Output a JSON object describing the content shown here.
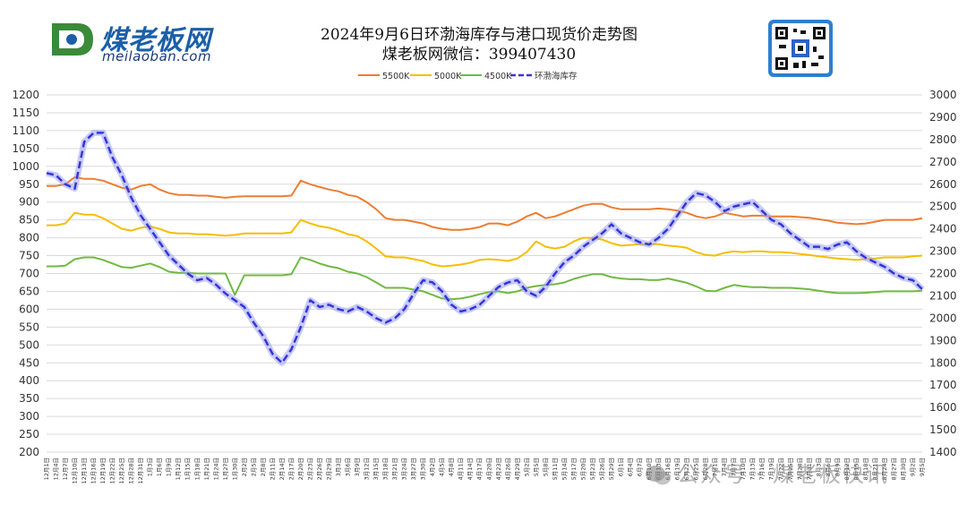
{
  "logo": {
    "name_zh": "煤老板网",
    "domain": "meilaoban.com"
  },
  "title": "2024年9月6日环渤海库存与港口现货价走势图",
  "subtitle": "煤老板网微信：399407430",
  "watermark": "公众号 · 煤老板快讯",
  "qr_icon": "qr-code-icon",
  "colors": {
    "s5500": "#ED7D31",
    "s5000": "#F5BE00",
    "s4500": "#70B944",
    "inventory": "#3535D9",
    "inventory_glow": "#9AA0F0",
    "grid": "#D9D9D9"
  },
  "chart_data": {
    "type": "line",
    "left_axis": {
      "range": [
        200,
        1200
      ],
      "step": 50
    },
    "right_axis": {
      "range": [
        1400,
        3000
      ],
      "step": 100
    },
    "x_tick_labels": [
      "12月1日",
      "12月4日",
      "12月7日",
      "12月10日",
      "12月13日",
      "12月16日",
      "12月19日",
      "12月22日",
      "12月25日",
      "12月28日",
      "12月31日",
      "1月3日",
      "1月6日",
      "1月9日",
      "1月12日",
      "1月15日",
      "1月18日",
      "1月21日",
      "1月24日",
      "1月27日",
      "1月30日",
      "2月2日",
      "2月5日",
      "2月8日",
      "2月11日",
      "2月14日",
      "2月17日",
      "2月20日",
      "2月23日",
      "2月26日",
      "2月29日",
      "3月3日",
      "3月6日",
      "3月9日",
      "3月12日",
      "3月15日",
      "3月18日",
      "3月21日",
      "3月24日",
      "3月27日",
      "3月30日",
      "4月2日",
      "4月5日",
      "4月8日",
      "4月11日",
      "4月14日",
      "4月17日",
      "4月20日",
      "4月23日",
      "4月26日",
      "4月29日",
      "5月2日",
      "5月5日",
      "5月8日",
      "5月11日",
      "5月14日",
      "5月17日",
      "5月20日",
      "5月23日",
      "5月26日",
      "5月29日",
      "6月1日",
      "6月4日",
      "6月7日",
      "6月10日",
      "6月13日",
      "6月16日",
      "6月19日",
      "6月22日",
      "6月25日",
      "6月28日",
      "7月1日",
      "7月4日",
      "7月7日",
      "7月10日",
      "7月13日",
      "7月16日",
      "7月19日",
      "7月22日",
      "7月25日",
      "7月28日",
      "7月31日",
      "8月3日",
      "8月6日",
      "8月9日",
      "8月12日",
      "8月15日",
      "8月18日",
      "8月21日",
      "8月24日",
      "8月27日",
      "8月30日",
      "9月2日",
      "9月5日"
    ],
    "legend_position": "top",
    "grid": "horizontal",
    "series": [
      {
        "name": "5500K",
        "axis": "left",
        "style": "solid",
        "color_key": "s5500",
        "values": [
          945,
          945,
          950,
          970,
          965,
          965,
          960,
          950,
          940,
          935,
          945,
          950,
          935,
          925,
          920,
          920,
          918,
          918,
          915,
          912,
          915,
          916,
          916,
          916,
          916,
          916,
          918,
          960,
          950,
          942,
          935,
          930,
          920,
          915,
          900,
          880,
          855,
          850,
          850,
          845,
          840,
          830,
          825,
          822,
          822,
          825,
          830,
          840,
          840,
          835,
          845,
          860,
          870,
          855,
          860,
          870,
          880,
          890,
          895,
          895,
          885,
          880,
          880,
          880,
          880,
          882,
          880,
          876,
          870,
          860,
          855,
          860,
          870,
          865,
          860,
          862,
          862,
          860,
          860,
          860,
          858,
          856,
          852,
          848,
          842,
          840,
          838,
          840,
          845,
          850,
          850,
          850,
          850,
          855
        ]
      },
      {
        "name": "5000K",
        "axis": "left",
        "style": "solid",
        "color_key": "s5000",
        "values": [
          835,
          835,
          840,
          870,
          865,
          865,
          855,
          840,
          825,
          820,
          828,
          832,
          825,
          815,
          812,
          812,
          810,
          810,
          808,
          806,
          808,
          812,
          812,
          812,
          812,
          812,
          815,
          850,
          840,
          832,
          828,
          820,
          810,
          805,
          790,
          770,
          748,
          745,
          745,
          740,
          735,
          725,
          720,
          722,
          725,
          730,
          738,
          740,
          738,
          735,
          742,
          760,
          790,
          775,
          770,
          775,
          790,
          800,
          800,
          795,
          785,
          778,
          780,
          782,
          782,
          782,
          778,
          776,
          772,
          760,
          752,
          750,
          758,
          762,
          760,
          762,
          762,
          760,
          760,
          758,
          755,
          752,
          748,
          745,
          742,
          740,
          738,
          740,
          742,
          745,
          745,
          745,
          748,
          750
        ]
      },
      {
        "name": "4500K",
        "axis": "left",
        "style": "solid",
        "color_key": "s4500",
        "values": [
          720,
          720,
          722,
          740,
          745,
          745,
          738,
          728,
          718,
          716,
          722,
          728,
          718,
          705,
          702,
          702,
          700,
          700,
          700,
          700,
          640,
          695,
          695,
          695,
          695,
          695,
          698,
          745,
          738,
          728,
          720,
          715,
          705,
          700,
          690,
          675,
          660,
          660,
          660,
          655,
          650,
          640,
          630,
          628,
          630,
          635,
          642,
          648,
          650,
          645,
          650,
          660,
          665,
          668,
          670,
          675,
          685,
          692,
          698,
          698,
          690,
          686,
          684,
          684,
          682,
          682,
          686,
          680,
          674,
          664,
          652,
          650,
          660,
          668,
          664,
          662,
          662,
          660,
          660,
          660,
          658,
          656,
          652,
          648,
          645,
          645,
          645,
          646,
          648,
          650,
          650,
          650,
          650,
          652
        ]
      },
      {
        "name": "环渤海库存",
        "axis": "right",
        "style": "dashed",
        "color_key": "inventory",
        "values": [
          2650,
          2640,
          2600,
          2580,
          2790,
          2830,
          2830,
          2720,
          2640,
          2540,
          2460,
          2400,
          2340,
          2280,
          2240,
          2200,
          2170,
          2180,
          2150,
          2110,
          2080,
          2050,
          1980,
          1920,
          1840,
          1800,
          1860,
          1960,
          2080,
          2050,
          2060,
          2040,
          2030,
          2050,
          2030,
          2000,
          1980,
          2000,
          2040,
          2110,
          2170,
          2160,
          2120,
          2060,
          2030,
          2040,
          2060,
          2100,
          2140,
          2160,
          2170,
          2120,
          2100,
          2140,
          2200,
          2250,
          2280,
          2320,
          2350,
          2380,
          2420,
          2380,
          2360,
          2340,
          2330,
          2360,
          2400,
          2460,
          2520,
          2560,
          2550,
          2520,
          2480,
          2500,
          2510,
          2520,
          2480,
          2440,
          2420,
          2380,
          2350,
          2320,
          2320,
          2310,
          2330,
          2340,
          2300,
          2270,
          2250,
          2230,
          2200,
          2180,
          2170,
          2130
        ]
      }
    ]
  }
}
